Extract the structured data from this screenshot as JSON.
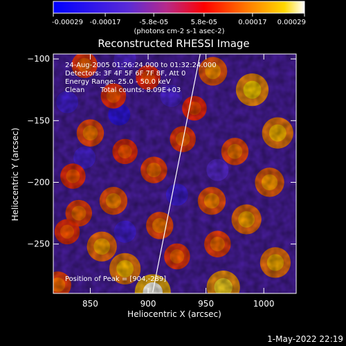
{
  "chart_data": {
    "type": "heatmap",
    "title": "Reconstructed RHESSI Image",
    "xlabel": "Heliocentric X (arcsec)",
    "ylabel": "Heliocentric Y (arcsec)",
    "xlim": [
      818,
      1028
    ],
    "ylim": [
      -290,
      -96
    ],
    "x_ticks": [
      850,
      900,
      950,
      1000
    ],
    "y_ticks": [
      -100,
      -150,
      -200,
      -250
    ],
    "colorbar": {
      "unit": "(photons cm-2 s-1 asec-2)",
      "range": [
        -0.00029,
        0.00029
      ],
      "top_tick_labels": [
        "-5.8e-05",
        "5.8e-05"
      ],
      "top_tick_values": [
        -5.8e-05,
        5.8e-05
      ],
      "bottom_tick_labels": [
        "-0.00029",
        "-0.00017",
        "0.00017",
        "0.00029"
      ],
      "bottom_tick_values": [
        -0.00029,
        -0.00017,
        0.00017,
        0.00029
      ],
      "colormap": [
        "#0000ff",
        "#5b2bd6",
        "#b62a8a",
        "#ff0000",
        "#ff8000",
        "#ffd800",
        "#ffffff"
      ]
    },
    "annotations": {
      "time_range": "24-Aug-2005 01:26:24.000 to 01:32:24.000",
      "detectors": "Detectors: 3F 4F 5F 6F 7F 8F, Att 0",
      "energy": "Energy Range: 25.0 - 50.0 keV",
      "clean": "Clean",
      "counts": "Total counts: 8.09E+03",
      "peak": "Position of Peak = [904,-289]"
    },
    "limb_line": {
      "points": [
        [
          904,
          -289
        ],
        [
          945,
          -96
        ]
      ]
    },
    "peak": [
      904,
      -289
    ],
    "hotspots": [
      {
        "x": 956,
        "y": -110,
        "value": 0.00018
      },
      {
        "x": 990,
        "y": -125,
        "value": 0.00024
      },
      {
        "x": 1012,
        "y": -160,
        "value": 0.00022
      },
      {
        "x": 975,
        "y": -175,
        "value": 0.00016
      },
      {
        "x": 1005,
        "y": -200,
        "value": 0.00019
      },
      {
        "x": 985,
        "y": -230,
        "value": 0.0002
      },
      {
        "x": 955,
        "y": -215,
        "value": 0.00017
      },
      {
        "x": 1010,
        "y": -265,
        "value": 0.00021
      },
      {
        "x": 965,
        "y": -285,
        "value": 0.00025
      },
      {
        "x": 904,
        "y": -289,
        "value": 0.00029
      },
      {
        "x": 880,
        "y": -270,
        "value": 0.00022
      },
      {
        "x": 860,
        "y": -252,
        "value": 0.0002
      },
      {
        "x": 840,
        "y": -225,
        "value": 0.00015
      },
      {
        "x": 870,
        "y": -215,
        "value": 0.00017
      },
      {
        "x": 910,
        "y": -235,
        "value": 0.00016
      },
      {
        "x": 925,
        "y": -260,
        "value": 0.00014
      },
      {
        "x": 905,
        "y": -190,
        "value": 0.00015
      },
      {
        "x": 930,
        "y": -165,
        "value": 0.00014
      },
      {
        "x": 880,
        "y": -175,
        "value": 0.00013
      },
      {
        "x": 850,
        "y": -160,
        "value": 0.00016
      },
      {
        "x": 835,
        "y": -195,
        "value": 0.00013
      },
      {
        "x": 870,
        "y": -130,
        "value": 0.00013
      },
      {
        "x": 900,
        "y": -115,
        "value": 0.00012
      },
      {
        "x": 845,
        "y": -105,
        "value": 0.00014
      },
      {
        "x": 940,
        "y": -140,
        "value": 0.00012
      },
      {
        "x": 960,
        "y": -250,
        "value": 0.00015
      },
      {
        "x": 822,
        "y": -283,
        "value": 0.00015
      },
      {
        "x": 830,
        "y": -240,
        "value": 0.00013
      }
    ],
    "coldspots": [
      {
        "x": 875,
        "y": -145,
        "value": -0.00021
      },
      {
        "x": 845,
        "y": -180,
        "value": -0.00015
      },
      {
        "x": 925,
        "y": -210,
        "value": -0.00017
      },
      {
        "x": 830,
        "y": -135,
        "value": -0.00016
      },
      {
        "x": 880,
        "y": -240,
        "value": -0.00016
      },
      {
        "x": 920,
        "y": -130,
        "value": -0.00014
      },
      {
        "x": 960,
        "y": -190,
        "value": -0.00012
      },
      {
        "x": 880,
        "y": -100,
        "value": -0.00013
      }
    ]
  },
  "footer": {
    "date": "1-May-2022 22:19"
  }
}
